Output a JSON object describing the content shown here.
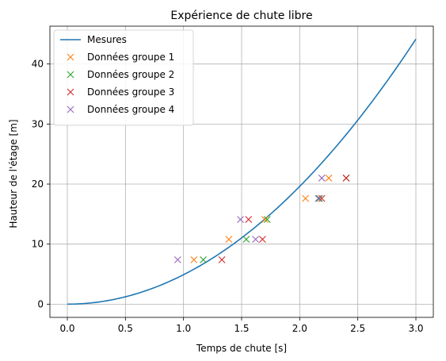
{
  "chart_data": {
    "type": "line+scatter",
    "title": "Expérience de chute libre",
    "xlabel": "Temps de chute [s]",
    "ylabel": "Hauteur de l'étage [m]",
    "xlim": [
      -0.15,
      3.15
    ],
    "ylim": [
      -2.2,
      46.3
    ],
    "x_ticks": [
      0.0,
      0.5,
      1.0,
      1.5,
      2.0,
      2.5,
      3.0
    ],
    "x_tick_labels": [
      "0.0",
      "0.5",
      "1.0",
      "1.5",
      "2.0",
      "2.5",
      "3.0"
    ],
    "y_ticks": [
      0,
      10,
      20,
      30,
      40
    ],
    "y_tick_labels": [
      "0",
      "10",
      "20",
      "30",
      "40"
    ],
    "grid": true,
    "legend_position": "top-left",
    "curve": {
      "name": "Mesures",
      "color": "#1f77b4",
      "equation_coefficient": 4.905,
      "x_range": [
        0,
        3
      ]
    },
    "series": [
      {
        "name": "Données groupe 1",
        "color": "#ff7f0e",
        "marker": "x",
        "points": [
          [
            1.09,
            7.4
          ],
          [
            1.39,
            10.8
          ],
          [
            1.7,
            14.1
          ],
          [
            2.05,
            17.6
          ],
          [
            2.25,
            21.0
          ]
        ]
      },
      {
        "name": "Données groupe 2",
        "color": "#2ca02c",
        "marker": "x",
        "points": [
          [
            1.17,
            7.4
          ],
          [
            1.54,
            10.8
          ],
          [
            1.72,
            14.1
          ],
          [
            2.17,
            17.6
          ],
          [
            2.4,
            21.0
          ]
        ]
      },
      {
        "name": "Données groupe 3",
        "color": "#d62728",
        "marker": "x",
        "points": [
          [
            1.33,
            7.4
          ],
          [
            1.68,
            10.8
          ],
          [
            1.56,
            14.1
          ],
          [
            2.19,
            17.6
          ],
          [
            2.4,
            21.0
          ]
        ]
      },
      {
        "name": "Données groupe 4",
        "color": "#9467bd",
        "marker": "x",
        "points": [
          [
            0.95,
            7.4
          ],
          [
            1.62,
            10.8
          ],
          [
            1.49,
            14.1
          ],
          [
            2.16,
            17.6
          ],
          [
            2.19,
            21.0
          ]
        ]
      }
    ]
  }
}
